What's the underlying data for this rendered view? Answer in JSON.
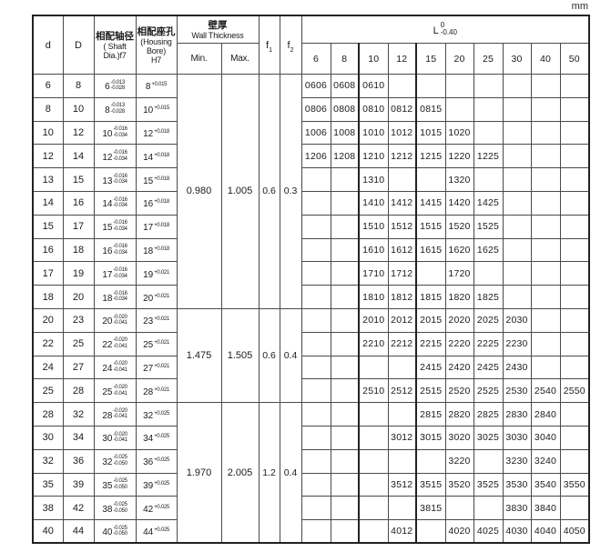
{
  "unit": "mm",
  "header": {
    "d": "d",
    "D": "D",
    "shaft": {
      "cn": "相配轴径",
      "en1": "( Shaft",
      "en2": "Dia.)f7"
    },
    "bore": {
      "cn": "相配座孔",
      "en1": "(Housing",
      "en2": "Bore)",
      "en3": "H7"
    },
    "wall": {
      "cn": "壁厚",
      "en": "Wall Thickness",
      "min": "Min.",
      "max": "Max."
    },
    "f1": {
      "base": "f",
      "sub": "1"
    },
    "f2": {
      "base": "f",
      "sub": "2"
    },
    "L": {
      "base": "L",
      "sup": "0",
      "sub": "-0.40"
    },
    "l_sizes": [
      "6",
      "8",
      "10",
      "12",
      "15",
      "20",
      "25",
      "30",
      "40",
      "50"
    ]
  },
  "sections": [
    {
      "min": "0.980",
      "max": "1.005",
      "f1": "0.6",
      "f2": "0.3",
      "row_count": 10
    },
    {
      "min": "1.475",
      "max": "1.505",
      "f1": "0.6",
      "f2": "0.4",
      "row_count": 4
    },
    {
      "min": "1.970",
      "max": "2.005",
      "f1": "1.2",
      "f2": "0.4",
      "row_count": 6
    }
  ],
  "rows": [
    {
      "d": "6",
      "D": "8",
      "shaft": {
        "v": "6",
        "hi": "-0.013",
        "lo": "-0.028"
      },
      "bore": {
        "v": "8",
        "hi": "+0.015"
      },
      "l": {
        "6": "0606",
        "8": "0608",
        "10": "0610"
      }
    },
    {
      "d": "8",
      "D": "10",
      "shaft": {
        "v": "8",
        "hi": "-0.013",
        "lo": "-0.028"
      },
      "bore": {
        "v": "10",
        "hi": "+0.015"
      },
      "l": {
        "6": "0806",
        "8": "0808",
        "10": "0810",
        "12": "0812",
        "15": "0815"
      }
    },
    {
      "d": "10",
      "D": "12",
      "shaft": {
        "v": "10",
        "hi": "-0.016",
        "lo": "-0.034"
      },
      "bore": {
        "v": "12",
        "hi": "+0.018"
      },
      "l": {
        "6": "1006",
        "8": "1008",
        "10": "1010",
        "12": "1012",
        "15": "1015",
        "20": "1020"
      }
    },
    {
      "d": "12",
      "D": "14",
      "shaft": {
        "v": "12",
        "hi": "-0.016",
        "lo": "-0.034"
      },
      "bore": {
        "v": "14",
        "hi": "+0.018"
      },
      "l": {
        "6": "1206",
        "8": "1208",
        "10": "1210",
        "12": "1212",
        "15": "1215",
        "20": "1220",
        "25": "1225"
      }
    },
    {
      "d": "13",
      "D": "15",
      "shaft": {
        "v": "13",
        "hi": "-0.016",
        "lo": "-0.034"
      },
      "bore": {
        "v": "15",
        "hi": "+0.018"
      },
      "l": {
        "10": "1310",
        "20": "1320"
      }
    },
    {
      "d": "14",
      "D": "16",
      "shaft": {
        "v": "14",
        "hi": "-0.016",
        "lo": "-0.034"
      },
      "bore": {
        "v": "16",
        "hi": "+0.018"
      },
      "l": {
        "10": "1410",
        "12": "1412",
        "15": "1415",
        "20": "1420",
        "25": "1425"
      }
    },
    {
      "d": "15",
      "D": "17",
      "shaft": {
        "v": "15",
        "hi": "-0.016",
        "lo": "-0.034"
      },
      "bore": {
        "v": "17",
        "hi": "+0.018"
      },
      "l": {
        "10": "1510",
        "12": "1512",
        "15": "1515",
        "20": "1520",
        "25": "1525"
      }
    },
    {
      "d": "16",
      "D": "18",
      "shaft": {
        "v": "16",
        "hi": "-0.016",
        "lo": "-0.034"
      },
      "bore": {
        "v": "18",
        "hi": "+0.018"
      },
      "l": {
        "10": "1610",
        "12": "1612",
        "15": "1615",
        "20": "1620",
        "25": "1625"
      }
    },
    {
      "d": "17",
      "D": "19",
      "shaft": {
        "v": "17",
        "hi": "-0.016",
        "lo": "-0.034"
      },
      "bore": {
        "v": "19",
        "hi": "+0.021"
      },
      "l": {
        "10": "1710",
        "12": "1712",
        "20": "1720"
      }
    },
    {
      "d": "18",
      "D": "20",
      "shaft": {
        "v": "18",
        "hi": "-0.016",
        "lo": "-0.034"
      },
      "bore": {
        "v": "20",
        "hi": "+0.021"
      },
      "l": {
        "10": "1810",
        "12": "1812",
        "15": "1815",
        "20": "1820",
        "25": "1825"
      }
    },
    {
      "d": "20",
      "D": "23",
      "shaft": {
        "v": "20",
        "hi": "-0.020",
        "lo": "-0.041"
      },
      "bore": {
        "v": "23",
        "hi": "+0.021"
      },
      "l": {
        "10": "2010",
        "12": "2012",
        "15": "2015",
        "20": "2020",
        "25": "2025",
        "30": "2030"
      }
    },
    {
      "d": "22",
      "D": "25",
      "shaft": {
        "v": "22",
        "hi": "-0.020",
        "lo": "-0.041"
      },
      "bore": {
        "v": "25",
        "hi": "+0.021"
      },
      "l": {
        "10": "2210",
        "12": "2212",
        "15": "2215",
        "20": "2220",
        "25": "2225",
        "30": "2230"
      }
    },
    {
      "d": "24",
      "D": "27",
      "shaft": {
        "v": "24",
        "hi": "-0.020",
        "lo": "-0.041"
      },
      "bore": {
        "v": "27",
        "hi": "+0.021"
      },
      "l": {
        "15": "2415",
        "20": "2420",
        "25": "2425",
        "30": "2430"
      }
    },
    {
      "d": "25",
      "D": "28",
      "shaft": {
        "v": "25",
        "hi": "-0.020",
        "lo": "-0.041"
      },
      "bore": {
        "v": "28",
        "hi": "+0.021"
      },
      "l": {
        "10": "2510",
        "12": "2512",
        "15": "2515",
        "20": "2520",
        "25": "2525",
        "30": "2530",
        "40": "2540",
        "50": "2550"
      }
    },
    {
      "d": "28",
      "D": "32",
      "shaft": {
        "v": "28",
        "hi": "-0.020",
        "lo": "-0.041"
      },
      "bore": {
        "v": "32",
        "hi": "+0.025"
      },
      "l": {
        "15": "2815",
        "20": "2820",
        "25": "2825",
        "30": "2830",
        "40": "2840"
      }
    },
    {
      "d": "30",
      "D": "34",
      "shaft": {
        "v": "30",
        "hi": "-0.020",
        "lo": "-0.041"
      },
      "bore": {
        "v": "34",
        "hi": "+0.025"
      },
      "l": {
        "12": "3012",
        "15": "3015",
        "20": "3020",
        "25": "3025",
        "30": "3030",
        "40": "3040"
      }
    },
    {
      "d": "32",
      "D": "36",
      "shaft": {
        "v": "32",
        "hi": "-0.025",
        "lo": "-0.050"
      },
      "bore": {
        "v": "36",
        "hi": "+0.025"
      },
      "l": {
        "20": "3220",
        "30": "3230",
        "40": "3240"
      }
    },
    {
      "d": "35",
      "D": "39",
      "shaft": {
        "v": "35",
        "hi": "-0.025",
        "lo": "-0.050"
      },
      "bore": {
        "v": "39",
        "hi": "+0.025"
      },
      "l": {
        "12": "3512",
        "15": "3515",
        "20": "3520",
        "25": "3525",
        "30": "3530",
        "40": "3540",
        "50": "3550"
      }
    },
    {
      "d": "38",
      "D": "42",
      "shaft": {
        "v": "38",
        "hi": "-0.025",
        "lo": "-0.050"
      },
      "bore": {
        "v": "42",
        "hi": "+0.025"
      },
      "l": {
        "15": "3815",
        "30": "3830",
        "40": "3840"
      }
    },
    {
      "d": "40",
      "D": "44",
      "shaft": {
        "v": "40",
        "hi": "-0.025",
        "lo": "-0.050"
      },
      "bore": {
        "v": "44",
        "hi": "+0.025"
      },
      "l": {
        "12": "4012",
        "20": "4020",
        "25": "4025",
        "30": "4030",
        "40": "4040",
        "50": "4050"
      }
    }
  ]
}
